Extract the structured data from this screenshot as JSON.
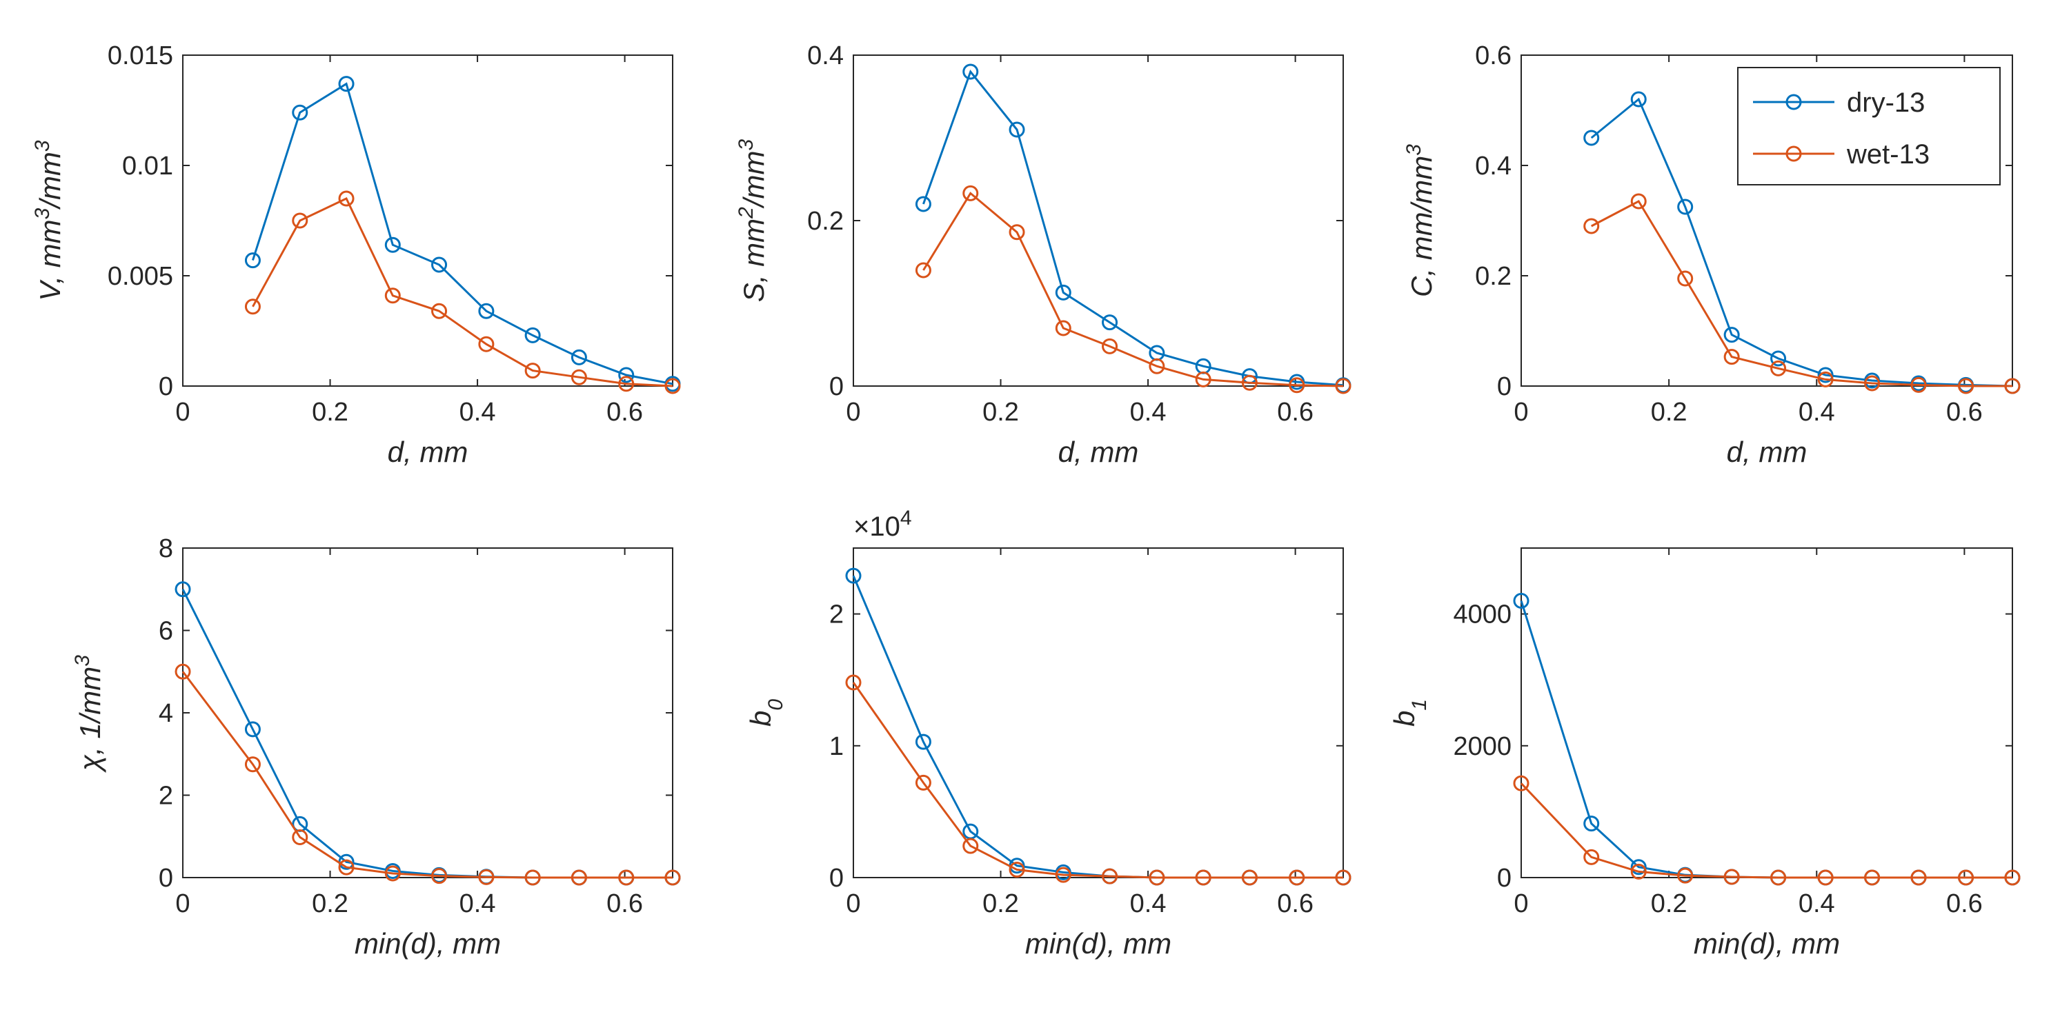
{
  "legend": {
    "entries": [
      "dry-13",
      "wet-13"
    ]
  },
  "colors": {
    "dry": "#0072BD",
    "wet": "#D95319",
    "axis": "#262626",
    "background": "#ffffff"
  },
  "chart_data": [
    {
      "id": "V",
      "type": "line",
      "xlabel": "d, mm",
      "ylabel": "V, mm³/mm³",
      "xlim": [
        0,
        0.665
      ],
      "ylim": [
        0,
        0.015
      ],
      "xticks": [
        0,
        0.2,
        0.4,
        0.6
      ],
      "xtick_labels": [
        "0",
        "0.2",
        "0.4",
        "0.6"
      ],
      "yticks": [
        0,
        0.005,
        0.01,
        0.015
      ],
      "ytick_labels": [
        "0",
        "0.005",
        "0.01",
        "0.015"
      ],
      "x": [
        0.095,
        0.159,
        0.222,
        0.285,
        0.348,
        0.412,
        0.475,
        0.538,
        0.602,
        0.665
      ],
      "series": [
        {
          "name": "dry-13",
          "values": [
            0.0057,
            0.0124,
            0.0137,
            0.0064,
            0.0055,
            0.0034,
            0.0023,
            0.0013,
            0.0005,
            0.0001
          ]
        },
        {
          "name": "wet-13",
          "values": [
            0.0036,
            0.0075,
            0.0085,
            0.0041,
            0.0034,
            0.0019,
            0.0007,
            0.0004,
            0.0001,
            0.0
          ]
        }
      ]
    },
    {
      "id": "S",
      "type": "line",
      "xlabel": "d, mm",
      "ylabel": "S, mm²/mm³",
      "xlim": [
        0,
        0.665
      ],
      "ylim": [
        0,
        0.4
      ],
      "xticks": [
        0,
        0.2,
        0.4,
        0.6
      ],
      "xtick_labels": [
        "0",
        "0.2",
        "0.4",
        "0.6"
      ],
      "yticks": [
        0,
        0.2,
        0.4
      ],
      "ytick_labels": [
        "0",
        "0.2",
        "0.4"
      ],
      "x": [
        0.095,
        0.159,
        0.222,
        0.285,
        0.348,
        0.412,
        0.475,
        0.538,
        0.602,
        0.665
      ],
      "series": [
        {
          "name": "dry-13",
          "values": [
            0.22,
            0.38,
            0.31,
            0.113,
            0.077,
            0.04,
            0.024,
            0.012,
            0.005,
            0.001
          ]
        },
        {
          "name": "wet-13",
          "values": [
            0.14,
            0.233,
            0.186,
            0.07,
            0.048,
            0.024,
            0.008,
            0.004,
            0.001,
            0.0
          ]
        }
      ]
    },
    {
      "id": "C",
      "type": "line",
      "xlabel": "d, mm",
      "ylabel": "C, mm/mm³",
      "xlim": [
        0,
        0.665
      ],
      "ylim": [
        0,
        0.6
      ],
      "xticks": [
        0,
        0.2,
        0.4,
        0.6
      ],
      "xtick_labels": [
        "0",
        "0.2",
        "0.4",
        "0.6"
      ],
      "yticks": [
        0,
        0.2,
        0.4,
        0.6
      ],
      "ytick_labels": [
        "0",
        "0.2",
        "0.4",
        "0.6"
      ],
      "legend_position": "top-right",
      "x": [
        0.095,
        0.159,
        0.222,
        0.285,
        0.348,
        0.412,
        0.475,
        0.538,
        0.602,
        0.665
      ],
      "series": [
        {
          "name": "dry-13",
          "values": [
            0.45,
            0.52,
            0.325,
            0.093,
            0.05,
            0.02,
            0.01,
            0.005,
            0.002,
            0.0
          ]
        },
        {
          "name": "wet-13",
          "values": [
            0.29,
            0.335,
            0.195,
            0.053,
            0.032,
            0.012,
            0.005,
            0.002,
            0.0,
            0.0
          ]
        }
      ]
    },
    {
      "id": "chi",
      "type": "line",
      "xlabel": "min(d), mm",
      "ylabel": "χ,  1/mm³",
      "xlim": [
        0,
        0.665
      ],
      "ylim": [
        0,
        8
      ],
      "xticks": [
        0,
        0.2,
        0.4,
        0.6
      ],
      "xtick_labels": [
        "0",
        "0.2",
        "0.4",
        "0.6"
      ],
      "yticks": [
        0,
        2,
        4,
        6,
        8
      ],
      "ytick_labels": [
        "0",
        "2",
        "4",
        "6",
        "8"
      ],
      "x": [
        0.0,
        0.095,
        0.159,
        0.222,
        0.285,
        0.348,
        0.412,
        0.475,
        0.538,
        0.602,
        0.665
      ],
      "series": [
        {
          "name": "dry-13",
          "values": [
            7.0,
            3.6,
            1.3,
            0.38,
            0.16,
            0.06,
            0.02,
            0.0,
            0.0,
            0.0,
            0.0
          ]
        },
        {
          "name": "wet-13",
          "values": [
            5.0,
            2.75,
            0.98,
            0.25,
            0.1,
            0.04,
            0.01,
            0.0,
            0.0,
            0.0,
            0.0
          ]
        }
      ]
    },
    {
      "id": "b0",
      "type": "line",
      "xlabel": "min(d), mm",
      "ylabel": "b₀",
      "exponent_label": "×10⁴",
      "xlim": [
        0,
        0.665
      ],
      "ylim": [
        0,
        2.5
      ],
      "xticks": [
        0,
        0.2,
        0.4,
        0.6
      ],
      "xtick_labels": [
        "0",
        "0.2",
        "0.4",
        "0.6"
      ],
      "yticks": [
        0,
        1,
        2
      ],
      "ytick_labels": [
        "0",
        "1",
        "2"
      ],
      "x": [
        0.0,
        0.095,
        0.159,
        0.222,
        0.285,
        0.348,
        0.412,
        0.475,
        0.538,
        0.602,
        0.665
      ],
      "series": [
        {
          "name": "dry-13",
          "values": [
            2.29,
            1.03,
            0.35,
            0.09,
            0.04,
            0.01,
            0.0,
            0.0,
            0.0,
            0.0,
            0.0
          ]
        },
        {
          "name": "wet-13",
          "values": [
            1.48,
            0.72,
            0.24,
            0.06,
            0.02,
            0.01,
            0.0,
            0.0,
            0.0,
            0.0,
            0.0
          ]
        }
      ]
    },
    {
      "id": "b1",
      "type": "line",
      "xlabel": "min(d), mm",
      "ylabel": "b₁",
      "xlim": [
        0,
        0.665
      ],
      "ylim": [
        0,
        5000
      ],
      "xticks": [
        0,
        0.2,
        0.4,
        0.6
      ],
      "xtick_labels": [
        "0",
        "0.2",
        "0.4",
        "0.6"
      ],
      "yticks": [
        0,
        2000,
        4000
      ],
      "ytick_labels": [
        "0",
        "2000",
        "4000"
      ],
      "x": [
        0.0,
        0.095,
        0.159,
        0.222,
        0.285,
        0.348,
        0.412,
        0.475,
        0.538,
        0.602,
        0.665
      ],
      "series": [
        {
          "name": "dry-13",
          "values": [
            4200,
            820,
            160,
            40,
            10,
            0,
            0,
            0,
            0,
            0,
            0
          ]
        },
        {
          "name": "wet-13",
          "values": [
            1430,
            310,
            90,
            30,
            10,
            0,
            0,
            0,
            0,
            0,
            0
          ]
        }
      ]
    }
  ]
}
